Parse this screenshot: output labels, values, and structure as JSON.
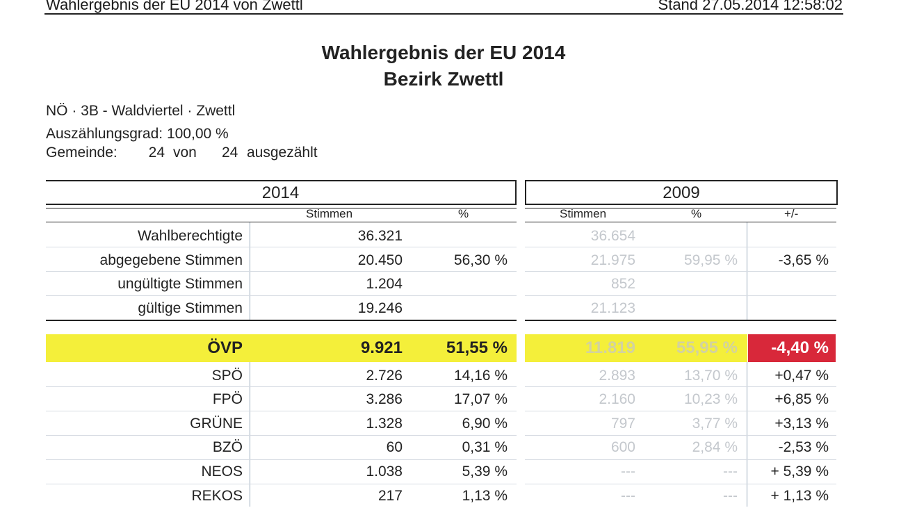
{
  "header": {
    "left": "Wahlergebnis der EU 2014 von Zwettl",
    "right": "Stand 27.05.2014 12:58:02"
  },
  "title": {
    "line1": "Wahlergebnis der EU 2014",
    "line2": "Bezirk Zwettl"
  },
  "info": {
    "region": "NÖ · 3B - Waldviertel · Zwettl",
    "auszaehlung": "Auszählungsgrad: 100,00 %",
    "gemeinde_label": "Gemeinde:",
    "gemeinde_count": "24",
    "von": "von",
    "gemeinde_total": "24",
    "ausgezaehlt": "ausgezählt"
  },
  "years": {
    "current": "2014",
    "previous": "2009"
  },
  "columns": {
    "stimmen": "Stimmen",
    "pct": "%",
    "diff": "+/-"
  },
  "summary": [
    {
      "label": "Wahlberechtigte",
      "v14": "36.321",
      "p14": "",
      "v09": "36.654",
      "p09": "",
      "diff": ""
    },
    {
      "label": "abgegebene Stimmen",
      "v14": "20.450",
      "p14": "56,30 %",
      "v09": "21.975",
      "p09": "59,95 %",
      "diff": "-3,65 %"
    },
    {
      "label": "ungültigte Stimmen",
      "v14": "1.204",
      "p14": "",
      "v09": "852",
      "p09": "",
      "diff": ""
    },
    {
      "label": "gültige Stimmen",
      "v14": "19.246",
      "p14": "",
      "v09": "21.123",
      "p09": "",
      "diff": ""
    }
  ],
  "parties": [
    {
      "label": "ÖVP",
      "v14": "9.921",
      "p14": "51,55 %",
      "v09": "11.819",
      "p09": "55,95 %",
      "diff": "-4,40 %"
    },
    {
      "label": "SPÖ",
      "v14": "2.726",
      "p14": "14,16 %",
      "v09": "2.893",
      "p09": "13,70 %",
      "diff": "+0,47 %"
    },
    {
      "label": "FPÖ",
      "v14": "3.286",
      "p14": "17,07 %",
      "v09": "2.160",
      "p09": "10,23 %",
      "diff": "+6,85 %"
    },
    {
      "label": "GRÜNE",
      "v14": "1.328",
      "p14": "6,90 %",
      "v09": "797",
      "p09": "3,77 %",
      "diff": "+3,13 %"
    },
    {
      "label": "BZÖ",
      "v14": "60",
      "p14": "0,31 %",
      "v09": "600",
      "p09": "2,84 %",
      "diff": "-2,53 %"
    },
    {
      "label": "NEOS",
      "v14": "1.038",
      "p14": "5,39 %",
      "v09": "---",
      "p09": "---",
      "diff": "+ 5,39 %"
    },
    {
      "label": "REKOS",
      "v14": "217",
      "p14": "1,13 %",
      "v09": "---",
      "p09": "---",
      "diff": "+ 1,13 %"
    }
  ],
  "colors": {
    "highlight_yellow": "#f4ef3a",
    "loss_red": "#d8283a",
    "faded_2009": "#c4c8cd"
  }
}
